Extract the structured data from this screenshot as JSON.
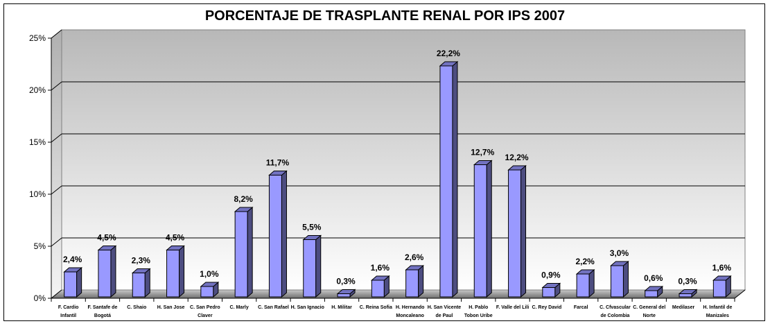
{
  "chart_data": {
    "type": "bar",
    "title": "PORCENTAJE DE TRASPLANTE RENAL POR IPS 2007",
    "xlabel": "",
    "ylabel": "",
    "ylim": [
      0,
      25
    ],
    "yticks": [
      "0%",
      "5%",
      "10%",
      "15%",
      "20%",
      "25%"
    ],
    "ytick_values": [
      0,
      5,
      10,
      15,
      20,
      25
    ],
    "grid": true,
    "legend": "none",
    "style": "3d-column",
    "bar_color": "#9999ff",
    "bar_side_color": "#4d4d80",
    "categories": [
      [
        "F. Cardio",
        "Infantil"
      ],
      [
        "F. Santafe de",
        "Bogotá"
      ],
      [
        "C. Shaio"
      ],
      [
        "H. San Jose"
      ],
      [
        "C. San Pedro",
        "Claver"
      ],
      [
        "C. Marly"
      ],
      [
        "C. San Rafael"
      ],
      [
        "H. San Ignacio"
      ],
      [
        "H. Militar"
      ],
      [
        "C. Reina Sofia"
      ],
      [
        "H. Hernando",
        "Moncaleano"
      ],
      [
        "H. San Vicente",
        "de Paul"
      ],
      [
        "H. Pablo",
        "Tobon Uribe"
      ],
      [
        "F. Valle del Lili"
      ],
      [
        "C. Rey David"
      ],
      [
        "Farcal"
      ],
      [
        "C. Cfvascular",
        "de Colombia"
      ],
      [
        "C. General del",
        "Norte"
      ],
      [
        "Medilaser"
      ],
      [
        "H. Infantil de",
        "Manizales"
      ]
    ],
    "values": [
      2.4,
      4.5,
      2.3,
      4.5,
      1.0,
      8.2,
      11.7,
      5.5,
      0.3,
      1.6,
      2.6,
      22.2,
      12.7,
      12.2,
      0.9,
      2.2,
      3.0,
      0.6,
      0.3,
      1.6
    ],
    "data_labels": [
      "2,4%",
      "4,5%",
      "2,3%",
      "4,5%",
      "1,0%",
      "8,2%",
      "11,7%",
      "5,5%",
      "0,3%",
      "1,6%",
      "2,6%",
      "22,2%",
      "12,7%",
      "12,2%",
      "0,9%",
      "2,2%",
      "3,0%",
      "0,6%",
      "0,3%",
      "1,6%"
    ]
  }
}
